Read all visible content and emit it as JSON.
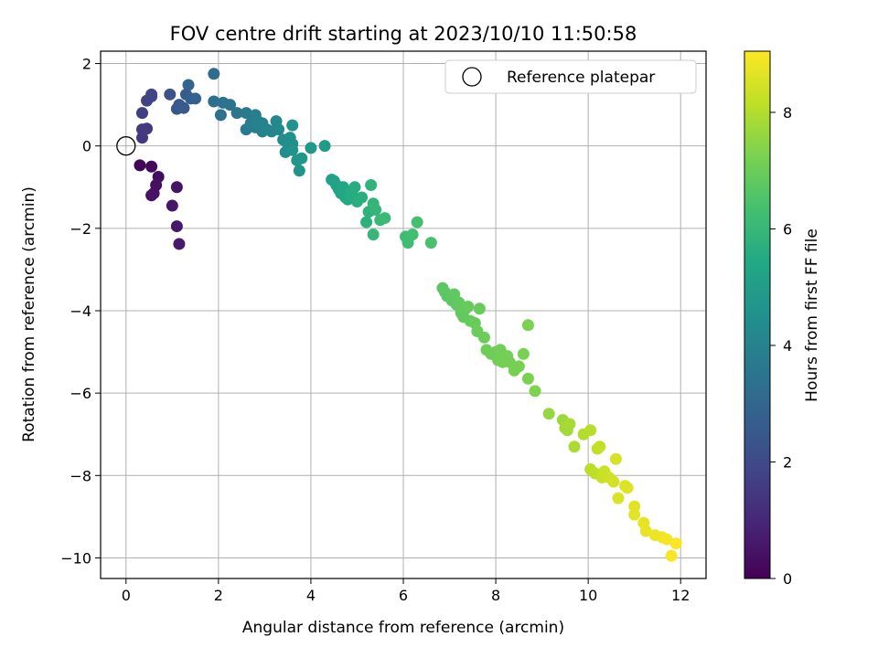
{
  "chart_data": {
    "type": "scatter",
    "title": "FOV centre drift starting at 2023/10/10 11:50:58",
    "xlabel": "Angular distance from reference (arcmin)",
    "ylabel": "Rotation from reference (arcmin)",
    "colorbar_label": "Hours from first FF file",
    "xlim": [
      -0.55,
      12.55
    ],
    "ylim": [
      -10.5,
      2.3
    ],
    "clim": [
      0,
      9.05
    ],
    "xticks": [
      0,
      2,
      4,
      6,
      8,
      10,
      12
    ],
    "yticks": [
      -10,
      -8,
      -6,
      -4,
      -2,
      0,
      2
    ],
    "cticks": [
      0,
      2,
      4,
      6,
      8
    ],
    "grid": true,
    "legend": {
      "position": "top-right",
      "entries": [
        {
          "label": "Reference platepar",
          "marker": "open-circle"
        }
      ]
    },
    "reference_point": {
      "x": 0,
      "y": 0
    },
    "colormap": [
      "#440154",
      "#482475",
      "#414487",
      "#355f8d",
      "#2a788e",
      "#21918c",
      "#22a884",
      "#44bf70",
      "#7ad151",
      "#bddf26",
      "#fde725"
    ],
    "series": [
      {
        "points": [
          [
            0.3,
            -0.47,
            0.1
          ],
          [
            0.55,
            -0.5,
            0.2
          ],
          [
            0.7,
            -0.75,
            0.3
          ],
          [
            0.65,
            -0.95,
            0.35
          ],
          [
            0.6,
            -1.15,
            0.4
          ],
          [
            0.55,
            -1.2,
            0.45
          ],
          [
            1.1,
            -1.0,
            0.5
          ],
          [
            1.0,
            -1.45,
            0.55
          ],
          [
            1.1,
            -1.95,
            0.6
          ],
          [
            1.15,
            -2.38,
            0.65
          ],
          [
            0.35,
            0.2,
            1.4
          ],
          [
            0.45,
            0.42,
            1.5
          ],
          [
            0.35,
            0.4,
            1.55
          ],
          [
            0.35,
            0.8,
            1.65
          ],
          [
            0.45,
            1.1,
            1.75
          ],
          [
            0.55,
            1.2,
            1.8
          ],
          [
            0.55,
            1.25,
            1.85
          ],
          [
            0.95,
            1.25,
            2.3
          ],
          [
            1.1,
            0.9,
            2.4
          ],
          [
            1.15,
            1.0,
            2.45
          ],
          [
            1.25,
            0.92,
            2.5
          ],
          [
            1.3,
            1.25,
            2.55
          ],
          [
            1.2,
            0.95,
            2.6
          ],
          [
            1.4,
            1.15,
            2.7
          ],
          [
            1.5,
            1.15,
            2.8
          ],
          [
            1.35,
            1.48,
            2.9
          ],
          [
            1.9,
            1.75,
            3.2
          ],
          [
            1.9,
            1.08,
            3.3
          ],
          [
            2.05,
            0.75,
            3.35
          ],
          [
            2.1,
            1.05,
            3.4
          ],
          [
            2.25,
            1.0,
            3.45
          ],
          [
            2.4,
            0.8,
            3.55
          ],
          [
            2.6,
            0.8,
            3.65
          ],
          [
            2.6,
            0.4,
            3.7
          ],
          [
            2.7,
            0.55,
            3.75
          ],
          [
            2.8,
            0.75,
            3.8
          ],
          [
            2.8,
            0.45,
            3.85
          ],
          [
            2.85,
            0.6,
            3.9
          ],
          [
            2.95,
            0.35,
            3.95
          ],
          [
            2.95,
            0.55,
            4.0
          ],
          [
            3.05,
            0.4,
            4.05
          ],
          [
            3.15,
            0.35,
            4.1
          ],
          [
            3.25,
            0.6,
            4.15
          ],
          [
            3.3,
            0.4,
            4.2
          ],
          [
            3.4,
            0.15,
            4.3
          ],
          [
            3.45,
            -0.15,
            4.35
          ],
          [
            3.5,
            0.05,
            4.4
          ],
          [
            3.55,
            0.2,
            4.45
          ],
          [
            3.6,
            0.05,
            4.5
          ],
          [
            3.6,
            0.5,
            4.55
          ],
          [
            3.6,
            -0.1,
            4.6
          ],
          [
            3.7,
            -0.35,
            4.65
          ],
          [
            3.75,
            -0.6,
            4.7
          ],
          [
            3.8,
            -0.3,
            4.75
          ],
          [
            4.0,
            -0.05,
            4.8
          ],
          [
            4.3,
            0.0,
            4.9
          ],
          [
            4.45,
            -0.82,
            5.1
          ],
          [
            4.5,
            -0.85,
            5.15
          ],
          [
            4.55,
            -0.95,
            5.2
          ],
          [
            4.6,
            -1.05,
            5.25
          ],
          [
            4.65,
            -1.15,
            5.3
          ],
          [
            4.7,
            -1.0,
            5.35
          ],
          [
            4.75,
            -1.25,
            5.4
          ],
          [
            4.8,
            -1.3,
            5.45
          ],
          [
            4.85,
            -1.1,
            5.5
          ],
          [
            4.9,
            -1.2,
            5.55
          ],
          [
            4.95,
            -1.0,
            5.6
          ],
          [
            5.0,
            -1.35,
            5.65
          ],
          [
            5.1,
            -1.25,
            5.7
          ],
          [
            5.2,
            -1.85,
            5.75
          ],
          [
            5.25,
            -1.6,
            5.8
          ],
          [
            5.3,
            -0.95,
            5.85
          ],
          [
            5.35,
            -1.4,
            5.9
          ],
          [
            5.4,
            -1.55,
            5.95
          ],
          [
            5.35,
            -2.15,
            6.0
          ],
          [
            5.5,
            -1.8,
            6.05
          ],
          [
            5.6,
            -1.75,
            6.1
          ],
          [
            6.05,
            -2.2,
            6.2
          ],
          [
            6.1,
            -2.35,
            6.25
          ],
          [
            6.2,
            -2.15,
            6.3
          ],
          [
            6.3,
            -1.85,
            6.35
          ],
          [
            6.6,
            -2.35,
            6.4
          ],
          [
            6.85,
            -3.45,
            6.7
          ],
          [
            6.9,
            -3.55,
            6.72
          ],
          [
            6.95,
            -3.65,
            6.74
          ],
          [
            7.05,
            -3.75,
            6.76
          ],
          [
            7.1,
            -3.6,
            6.78
          ],
          [
            7.15,
            -3.85,
            6.8
          ],
          [
            7.2,
            -3.8,
            6.82
          ],
          [
            7.25,
            -4.05,
            6.84
          ],
          [
            7.3,
            -4.15,
            6.86
          ],
          [
            7.35,
            -3.95,
            6.88
          ],
          [
            7.4,
            -3.9,
            6.9
          ],
          [
            7.45,
            -4.25,
            6.92
          ],
          [
            7.55,
            -4.3,
            6.94
          ],
          [
            7.65,
            -3.95,
            6.96
          ],
          [
            7.6,
            -4.5,
            6.98
          ],
          [
            7.75,
            -4.65,
            7.0
          ],
          [
            7.8,
            -4.95,
            7.02
          ],
          [
            7.9,
            -5.05,
            7.04
          ],
          [
            8.0,
            -5.0,
            7.06
          ],
          [
            8.05,
            -5.2,
            7.08
          ],
          [
            8.1,
            -4.95,
            7.1
          ],
          [
            8.15,
            -5.25,
            7.12
          ],
          [
            8.25,
            -5.1,
            7.14
          ],
          [
            8.3,
            -5.25,
            7.16
          ],
          [
            8.4,
            -5.45,
            7.18
          ],
          [
            8.5,
            -5.35,
            7.2
          ],
          [
            8.6,
            -5.05,
            7.22
          ],
          [
            8.7,
            -5.65,
            7.24
          ],
          [
            8.7,
            -4.35,
            7.26
          ],
          [
            8.85,
            -5.95,
            7.3
          ],
          [
            9.15,
            -6.5,
            7.6
          ],
          [
            9.45,
            -6.65,
            7.7
          ],
          [
            9.5,
            -6.85,
            7.75
          ],
          [
            9.55,
            -6.9,
            7.8
          ],
          [
            9.6,
            -6.75,
            7.85
          ],
          [
            9.7,
            -7.3,
            7.9
          ],
          [
            9.9,
            -7.0,
            8.0
          ],
          [
            10.05,
            -6.9,
            8.05
          ],
          [
            10.05,
            -7.85,
            8.1
          ],
          [
            10.15,
            -7.95,
            8.15
          ],
          [
            10.2,
            -7.35,
            8.2
          ],
          [
            10.25,
            -7.3,
            8.25
          ],
          [
            10.3,
            -8.05,
            8.3
          ],
          [
            10.35,
            -7.9,
            8.35
          ],
          [
            10.45,
            -8.05,
            8.4
          ],
          [
            10.55,
            -8.15,
            8.45
          ],
          [
            10.6,
            -7.6,
            8.5
          ],
          [
            10.65,
            -8.55,
            8.55
          ],
          [
            10.8,
            -8.25,
            8.6
          ],
          [
            10.85,
            -8.3,
            8.62
          ],
          [
            11.0,
            -8.75,
            8.65
          ],
          [
            11.0,
            -8.95,
            8.68
          ],
          [
            11.2,
            -9.15,
            8.72
          ],
          [
            11.25,
            -9.35,
            8.75
          ],
          [
            11.45,
            -9.45,
            8.8
          ],
          [
            11.6,
            -9.5,
            8.85
          ],
          [
            11.7,
            -9.55,
            8.9
          ],
          [
            11.8,
            -9.95,
            8.95
          ],
          [
            11.9,
            -9.65,
            9.0
          ]
        ]
      }
    ]
  }
}
